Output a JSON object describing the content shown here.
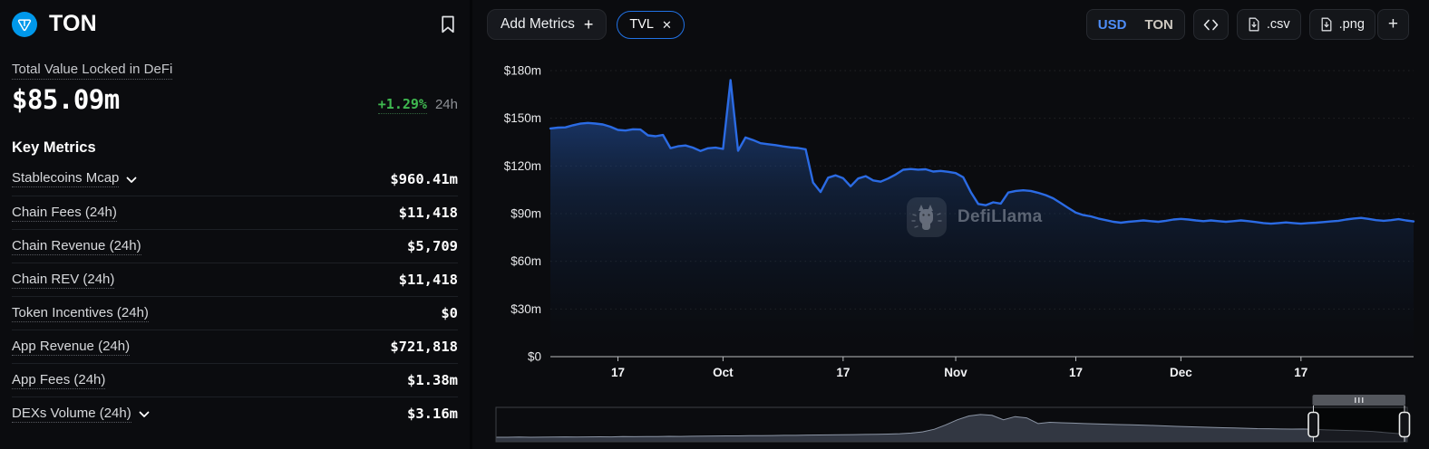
{
  "sidebar": {
    "coin": {
      "name": "TON",
      "logo_color": "#0098EA"
    },
    "tvl": {
      "label": "Total Value Locked in DeFi",
      "value": "$85.09m",
      "change": "+1.29%",
      "period": "24h",
      "change_color": "#3fb950"
    },
    "key_metrics_title": "Key Metrics",
    "metrics": [
      {
        "label": "Stablecoins Mcap",
        "value": "$960.41m",
        "expandable": true
      },
      {
        "label": "Chain Fees (24h)",
        "value": "$11,418",
        "expandable": false
      },
      {
        "label": "Chain Revenue (24h)",
        "value": "$5,709",
        "expandable": false
      },
      {
        "label": "Chain REV (24h)",
        "value": "$11,418",
        "expandable": false
      },
      {
        "label": "Token Incentives (24h)",
        "value": "$0",
        "expandable": false
      },
      {
        "label": "App Revenue (24h)",
        "value": "$721,818",
        "expandable": false
      },
      {
        "label": "App Fees (24h)",
        "value": "$1.38m",
        "expandable": false
      },
      {
        "label": "DEXs Volume (24h)",
        "value": "$3.16m",
        "expandable": true
      }
    ]
  },
  "toolbar": {
    "add_metrics_label": "Add Metrics",
    "active_metric": "TVL",
    "currency_options": [
      "USD",
      "TON"
    ],
    "selected_currency": "USD",
    "export_csv_label": ".csv",
    "export_png_label": ".png",
    "accent_color": "#2172e5"
  },
  "watermark_text": "DefiLlama",
  "chart_data": {
    "type": "area",
    "title": "TON Total Value Locked in DeFi",
    "currency": "USD",
    "line_color": "#2b6be4",
    "y_axis": {
      "min": 0,
      "max": 180,
      "unit": "millions USD",
      "ticks": [
        {
          "value": 0,
          "label": "$0"
        },
        {
          "value": 30,
          "label": "$30m"
        },
        {
          "value": 60,
          "label": "$60m"
        },
        {
          "value": 90,
          "label": "$90m"
        },
        {
          "value": 120,
          "label": "$120m"
        },
        {
          "value": 150,
          "label": "$150m"
        },
        {
          "value": 180,
          "label": "$180m"
        }
      ]
    },
    "x_axis": {
      "cadence": "daily",
      "ticks": [
        {
          "index": 9,
          "label": "17"
        },
        {
          "index": 23,
          "label": "Oct"
        },
        {
          "index": 39,
          "label": "17"
        },
        {
          "index": 54,
          "label": "Nov"
        },
        {
          "index": 70,
          "label": "17"
        },
        {
          "index": 84,
          "label": "Dec"
        },
        {
          "index": 100,
          "label": "17"
        }
      ]
    },
    "series": [
      {
        "name": "TVL",
        "values_millions_usd": [
          143.6,
          144.1,
          144.3,
          145.6,
          146.6,
          147.1,
          146.7,
          146.1,
          144.7,
          142.7,
          142.3,
          143.1,
          142.9,
          139.3,
          138.7,
          139.5,
          131.2,
          132.4,
          132.9,
          131.5,
          129.4,
          131.1,
          131.5,
          130.7,
          174.0,
          129.6,
          137.9,
          136.3,
          134.3,
          133.7,
          133.1,
          132.3,
          131.7,
          131.3,
          130.5,
          109.6,
          103.6,
          112.6,
          114.1,
          112.3,
          107.2,
          112.1,
          113.6,
          110.9,
          110.1,
          112.1,
          114.6,
          117.6,
          118.1,
          117.7,
          117.9,
          116.5,
          116.9,
          116.3,
          115.5,
          112.9,
          103.6,
          96.1,
          95.3,
          97.1,
          96.3,
          103.3,
          104.3,
          104.7,
          104.3,
          103.1,
          101.6,
          99.6,
          96.6,
          93.6,
          90.6,
          89.1,
          88.3,
          86.9,
          85.9,
          84.9,
          84.3,
          84.9,
          85.3,
          85.7,
          85.3,
          84.9,
          85.5,
          86.3,
          86.7,
          86.3,
          85.7,
          85.3,
          85.7,
          85.3,
          84.9,
          85.3,
          85.7,
          85.3,
          84.7,
          84.1,
          83.7,
          84.1,
          84.5,
          84.1,
          83.7,
          84.1,
          84.3,
          84.7,
          85.1,
          85.5,
          86.3,
          86.9,
          87.3,
          86.7,
          85.9,
          85.5,
          85.9,
          86.5,
          85.7,
          85.09
        ]
      }
    ],
    "minimap": {
      "description": "full-history TVL brush / data-zoom strip",
      "values_normalized": [
        0.13,
        0.13,
        0.135,
        0.13,
        0.132,
        0.138,
        0.14,
        0.135,
        0.14,
        0.142,
        0.14,
        0.148,
        0.145,
        0.15,
        0.152,
        0.158,
        0.155,
        0.16,
        0.162,
        0.168,
        0.17,
        0.172,
        0.178,
        0.18,
        0.182,
        0.188,
        0.19,
        0.198,
        0.2,
        0.202,
        0.208,
        0.21,
        0.218,
        0.22,
        0.228,
        0.24,
        0.26,
        0.3,
        0.38,
        0.52,
        0.68,
        0.8,
        0.845,
        0.82,
        0.68,
        0.78,
        0.74,
        0.56,
        0.6,
        0.585,
        0.575,
        0.56,
        0.55,
        0.54,
        0.53,
        0.52,
        0.51,
        0.5,
        0.485,
        0.47,
        0.46,
        0.45,
        0.44,
        0.43,
        0.42,
        0.41,
        0.4,
        0.398,
        0.39,
        0.385,
        0.39,
        0.375,
        0.36,
        0.35,
        0.34,
        0.33,
        0.31,
        0.28,
        0.25,
        0.22
      ],
      "selection_window": [
        0.897,
        0.997
      ]
    }
  }
}
